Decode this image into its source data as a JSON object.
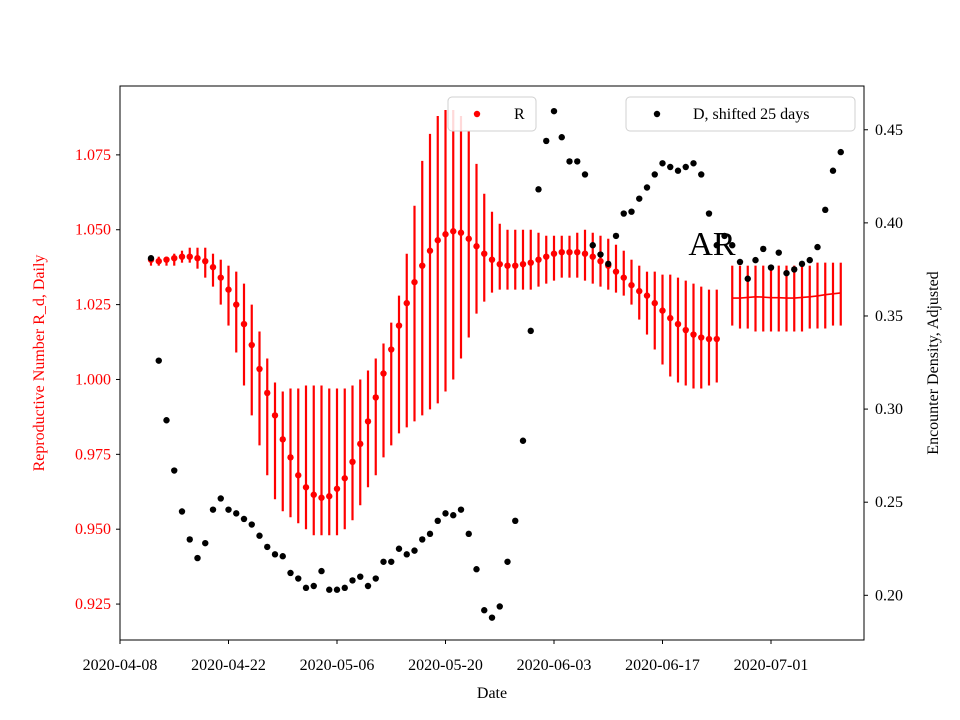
{
  "chart_data": {
    "type": "scatter",
    "xlabel": "Date",
    "ylabel_left": "Reproductive Number R_d, Daily",
    "ylabel_right": "Encounter Density, Adjusted",
    "annotation": "AR",
    "x_ticks": [
      "2020-04-08",
      "2020-04-22",
      "2020-05-06",
      "2020-05-20",
      "2020-06-03",
      "2020-06-17",
      "2020-07-01"
    ],
    "xlim": [
      "2020-04-08",
      "2020-07-13"
    ],
    "ylim_left": [
      0.913,
      1.098
    ],
    "ylim_right": [
      0.176,
      0.4735
    ],
    "y_ticks_left": [
      "0.925",
      "0.950",
      "0.975",
      "1.000",
      "1.025",
      "1.050",
      "1.075"
    ],
    "y_ticks_right": [
      "0.20",
      "0.25",
      "0.30",
      "0.35",
      "0.40",
      "0.45"
    ],
    "colors": {
      "r_series": "#ff0000",
      "left_axis_text": "#ff0000",
      "d_series": "#000000",
      "axes": "#000000"
    },
    "legend_left": {
      "label": "R",
      "position": "top-center"
    },
    "legend_right": {
      "label": "D, shifted 25 days",
      "position": "top-right"
    },
    "r_series": {
      "name": "R",
      "start_date": "2020-04-12",
      "values": [
        1.04,
        1.0395,
        1.04,
        1.0405,
        1.041,
        1.041,
        1.0405,
        1.0395,
        1.0375,
        1.034,
        1.03,
        1.025,
        1.0185,
        1.0115,
        1.0035,
        0.9955,
        0.988,
        0.98,
        0.974,
        0.968,
        0.964,
        0.9615,
        0.9605,
        0.961,
        0.9635,
        0.967,
        0.9725,
        0.9785,
        0.986,
        0.994,
        1.002,
        1.01,
        1.018,
        1.0255,
        1.0325,
        1.038,
        1.043,
        1.0465,
        1.0485,
        1.0495,
        1.049,
        1.047,
        1.0445,
        1.042,
        1.04,
        1.0385,
        1.038,
        1.038,
        1.0385,
        1.039,
        1.04,
        1.041,
        1.042,
        1.0425,
        1.0425,
        1.0425,
        1.042,
        1.041,
        1.0395,
        1.038,
        1.036,
        1.034,
        1.0315,
        1.0295,
        1.028,
        1.0255,
        1.023,
        1.0205,
        1.0185,
        1.0165,
        1.015,
        1.014,
        1.0135,
        1.0135
      ],
      "err_low": [
        1.038,
        1.038,
        1.038,
        1.038,
        1.039,
        1.039,
        1.037,
        1.034,
        1.031,
        1.025,
        1.018,
        1.009,
        0.998,
        0.988,
        0.978,
        0.968,
        0.96,
        0.956,
        0.954,
        0.952,
        0.95,
        0.948,
        0.948,
        0.948,
        0.948,
        0.95,
        0.953,
        0.958,
        0.964,
        0.968,
        0.974,
        0.978,
        0.982,
        0.984,
        0.986,
        0.988,
        0.99,
        0.992,
        0.996,
        1.0,
        1.007,
        1.014,
        1.022,
        1.026,
        1.029,
        1.03,
        1.03,
        1.03,
        1.03,
        1.03,
        1.031,
        1.032,
        1.033,
        1.034,
        1.034,
        1.034,
        1.033,
        1.032,
        1.031,
        1.03,
        1.029,
        1.028,
        1.025,
        1.02,
        1.015,
        1.01,
        1.005,
        1.001,
        0.999,
        0.998,
        0.997,
        0.997,
        0.998,
        0.999
      ],
      "err_high": [
        1.041,
        1.041,
        1.041,
        1.042,
        1.043,
        1.044,
        1.044,
        1.044,
        1.042,
        1.04,
        1.038,
        1.036,
        1.032,
        1.025,
        1.016,
        1.007,
        0.999,
        0.996,
        0.997,
        0.997,
        0.998,
        0.998,
        0.998,
        0.997,
        0.997,
        0.997,
        0.998,
        1.0,
        1.003,
        1.007,
        1.012,
        1.019,
        1.028,
        1.042,
        1.058,
        1.073,
        1.082,
        1.088,
        1.09,
        1.09,
        1.088,
        1.083,
        1.072,
        1.062,
        1.056,
        1.052,
        1.05,
        1.05,
        1.05,
        1.05,
        1.049,
        1.048,
        1.048,
        1.048,
        1.048,
        1.049,
        1.05,
        1.049,
        1.048,
        1.047,
        1.045,
        1.043,
        1.04,
        1.038,
        1.036,
        1.036,
        1.035,
        1.035,
        1.034,
        1.033,
        1.032,
        1.031,
        1.03,
        1.03
      ]
    },
    "r_forecast": {
      "start_date": "2020-06-26",
      "end_date": "2020-07-10",
      "values": [
        1.0272,
        1.0272,
        1.0274,
        1.0276,
        1.0275,
        1.0273,
        1.0273,
        1.0272,
        1.0272,
        1.0274,
        1.0276,
        1.0279,
        1.0283,
        1.0286,
        1.0289
      ],
      "err_low": [
        1.018,
        1.017,
        1.017,
        1.016,
        1.016,
        1.016,
        1.016,
        1.016,
        1.016,
        1.016,
        1.017,
        1.017,
        1.017,
        1.018,
        1.018
      ],
      "err_high": [
        1.038,
        1.038,
        1.038,
        1.038,
        1.038,
        1.038,
        1.038,
        1.038,
        1.038,
        1.038,
        1.038,
        1.039,
        1.039,
        1.039,
        1.039
      ]
    },
    "d_series": {
      "name": "D, shifted 25 days",
      "points": [
        [
          "2020-04-12",
          0.381
        ],
        [
          "2020-04-13",
          0.326
        ],
        [
          "2020-04-14",
          0.294
        ],
        [
          "2020-04-15",
          0.267
        ],
        [
          "2020-04-16",
          0.245
        ],
        [
          "2020-04-17",
          0.23
        ],
        [
          "2020-04-18",
          0.22
        ],
        [
          "2020-04-19",
          0.228
        ],
        [
          "2020-04-20",
          0.246
        ],
        [
          "2020-04-21",
          0.252
        ],
        [
          "2020-04-22",
          0.246
        ],
        [
          "2020-04-23",
          0.244
        ],
        [
          "2020-04-24",
          0.241
        ],
        [
          "2020-04-25",
          0.238
        ],
        [
          "2020-04-26",
          0.232
        ],
        [
          "2020-04-27",
          0.226
        ],
        [
          "2020-04-28",
          0.222
        ],
        [
          "2020-04-29",
          0.221
        ],
        [
          "2020-04-30",
          0.212
        ],
        [
          "2020-05-01",
          0.209
        ],
        [
          "2020-05-02",
          0.204
        ],
        [
          "2020-05-03",
          0.205
        ],
        [
          "2020-05-04",
          0.213
        ],
        [
          "2020-05-05",
          0.203
        ],
        [
          "2020-05-06",
          0.203
        ],
        [
          "2020-05-07",
          0.204
        ],
        [
          "2020-05-08",
          0.208
        ],
        [
          "2020-05-09",
          0.21
        ],
        [
          "2020-05-10",
          0.205
        ],
        [
          "2020-05-11",
          0.209
        ],
        [
          "2020-05-12",
          0.218
        ],
        [
          "2020-05-13",
          0.218
        ],
        [
          "2020-05-14",
          0.225
        ],
        [
          "2020-05-15",
          0.222
        ],
        [
          "2020-05-16",
          0.224
        ],
        [
          "2020-05-17",
          0.23
        ],
        [
          "2020-05-18",
          0.233
        ],
        [
          "2020-05-19",
          0.24
        ],
        [
          "2020-05-20",
          0.244
        ],
        [
          "2020-05-21",
          0.243
        ],
        [
          "2020-05-22",
          0.246
        ],
        [
          "2020-05-23",
          0.233
        ],
        [
          "2020-05-24",
          0.214
        ],
        [
          "2020-05-25",
          0.192
        ],
        [
          "2020-05-26",
          0.188
        ],
        [
          "2020-05-27",
          0.194
        ],
        [
          "2020-05-28",
          0.218
        ],
        [
          "2020-05-29",
          0.24
        ],
        [
          "2020-05-30",
          0.283
        ],
        [
          "2020-05-31",
          0.342
        ],
        [
          "2020-06-01",
          0.418
        ],
        [
          "2020-06-02",
          0.444
        ],
        [
          "2020-06-03",
          0.46
        ],
        [
          "2020-06-04",
          0.446
        ],
        [
          "2020-06-05",
          0.433
        ],
        [
          "2020-06-06",
          0.433
        ],
        [
          "2020-06-07",
          0.426
        ],
        [
          "2020-06-08",
          0.388
        ],
        [
          "2020-06-09",
          0.383
        ],
        [
          "2020-06-10",
          0.378
        ],
        [
          "2020-06-11",
          0.393
        ],
        [
          "2020-06-12",
          0.405
        ],
        [
          "2020-06-13",
          0.406
        ],
        [
          "2020-06-14",
          0.413
        ],
        [
          "2020-06-15",
          0.419
        ],
        [
          "2020-06-16",
          0.426
        ],
        [
          "2020-06-17",
          0.432
        ],
        [
          "2020-06-18",
          0.43
        ],
        [
          "2020-06-19",
          0.428
        ],
        [
          "2020-06-20",
          0.43
        ],
        [
          "2020-06-21",
          0.432
        ],
        [
          "2020-06-22",
          0.426
        ],
        [
          "2020-06-23",
          0.405
        ],
        [
          "2020-06-24",
          0.388
        ],
        [
          "2020-06-25",
          0.393
        ],
        [
          "2020-06-26",
          0.388
        ],
        [
          "2020-06-27",
          0.379
        ],
        [
          "2020-06-28",
          0.37
        ],
        [
          "2020-06-29",
          0.38
        ],
        [
          "2020-06-30",
          0.386
        ],
        [
          "2020-07-01",
          0.376
        ],
        [
          "2020-07-02",
          0.384
        ],
        [
          "2020-07-03",
          0.373
        ],
        [
          "2020-07-04",
          0.375
        ],
        [
          "2020-07-05",
          0.378
        ],
        [
          "2020-07-06",
          0.38
        ],
        [
          "2020-07-07",
          0.387
        ],
        [
          "2020-07-08",
          0.407
        ],
        [
          "2020-07-09",
          0.428
        ],
        [
          "2020-07-10",
          0.438
        ]
      ]
    }
  }
}
